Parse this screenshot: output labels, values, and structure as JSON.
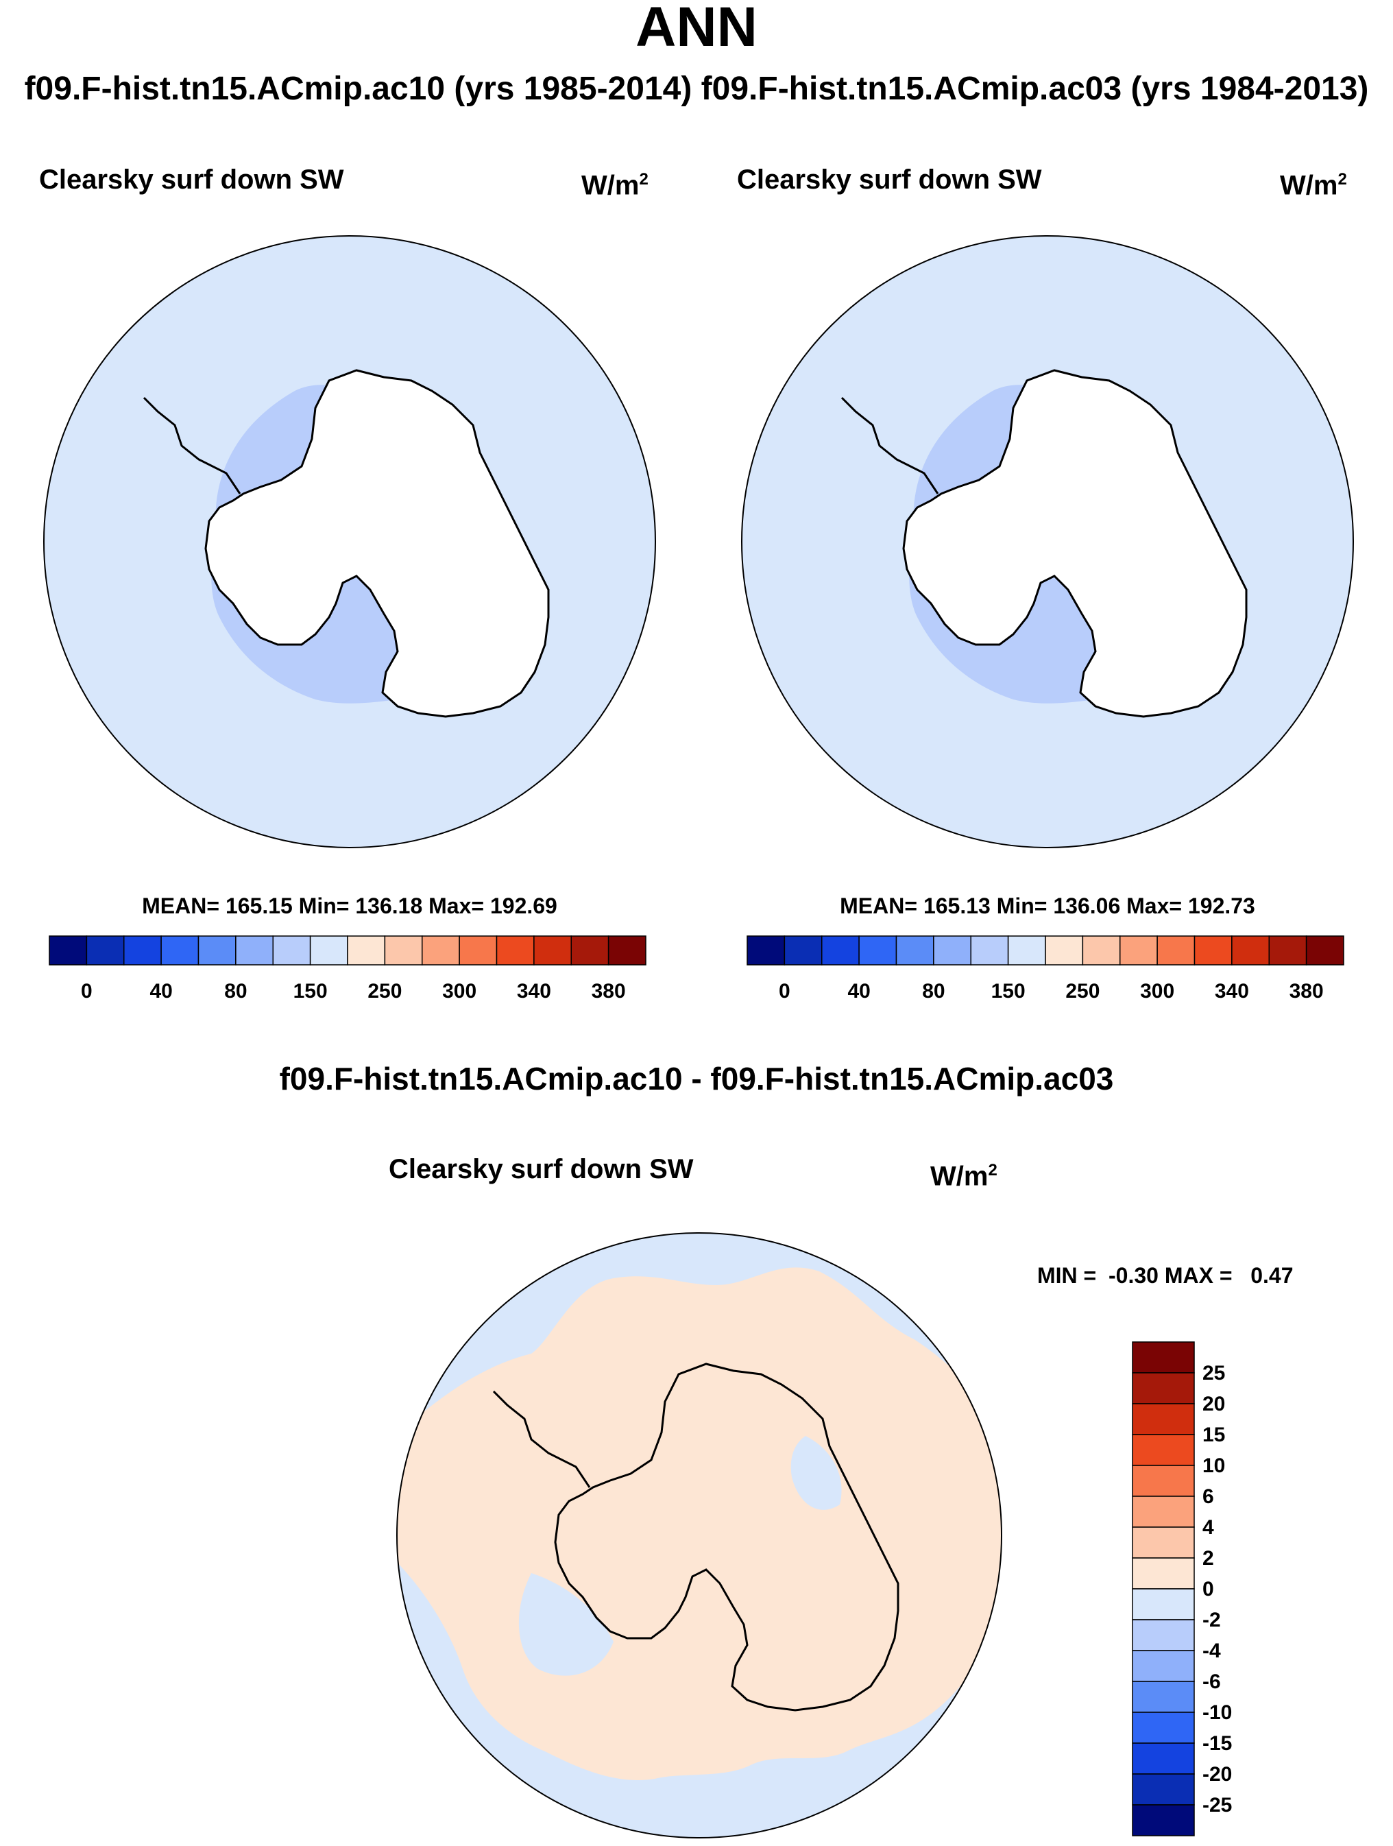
{
  "page": {
    "title": "ANN",
    "subtitle": "f09.F-hist.tn15.ACmip.ac10 (yrs 1985-2014)  f09.F-hist.tn15.ACmip.ac03 (yrs 1984-2013)"
  },
  "panels": [
    {
      "variable": "Clearsky surf down SW",
      "units_base": "W/m",
      "units_exp": "2",
      "stats": "MEAN= 165.15  Min= 136.18  Max= 192.69"
    },
    {
      "variable": "Clearsky surf down SW",
      "units_base": "W/m",
      "units_exp": "2",
      "stats": "MEAN= 165.13  Min= 136.06  Max= 192.73"
    }
  ],
  "colorbar_main": {
    "labels": [
      "0",
      "40",
      "80",
      "150",
      "250",
      "300",
      "340",
      "380"
    ],
    "colors": [
      "#000a7a",
      "#0a2eb4",
      "#1443e0",
      "#2f66f5",
      "#5b8cf7",
      "#8fb0fa",
      "#b8cdfb",
      "#d8e7fb",
      "#fde6d4",
      "#fcc7ab",
      "#fba27c",
      "#f7774b",
      "#ec4a1f",
      "#d02e0e",
      "#a5190a",
      "#7a0404"
    ]
  },
  "difference": {
    "title": "f09.F-hist.tn15.ACmip.ac10 - f09.F-hist.tn15.ACmip.ac03",
    "variable": "Clearsky surf down SW",
    "units_base": "W/m",
    "units_exp": "2",
    "stats": "MIN =  -0.30 MAX =   0.47",
    "colorbar_labels": [
      "25",
      "20",
      "15",
      "10",
      "6",
      "4",
      "2",
      "0",
      "-2",
      "-4",
      "-6",
      "-10",
      "-15",
      "-20",
      "-25"
    ],
    "colorbar_colors": [
      "#7a0404",
      "#a5190a",
      "#d02e0e",
      "#ec4a1f",
      "#f7774b",
      "#fba27c",
      "#fcc7ab",
      "#fde6d4",
      "#d8e7fb",
      "#b8cdfb",
      "#8fb0fa",
      "#5b8cf7",
      "#2f66f5",
      "#1443e0",
      "#0a2eb4",
      "#000a7a"
    ]
  },
  "map_colors": {
    "ocean_main": "#d8e7fb",
    "low_region": "#b8cdfb",
    "diff_positive": "#fde6d4",
    "diff_negative": "#d8e7fb"
  }
}
